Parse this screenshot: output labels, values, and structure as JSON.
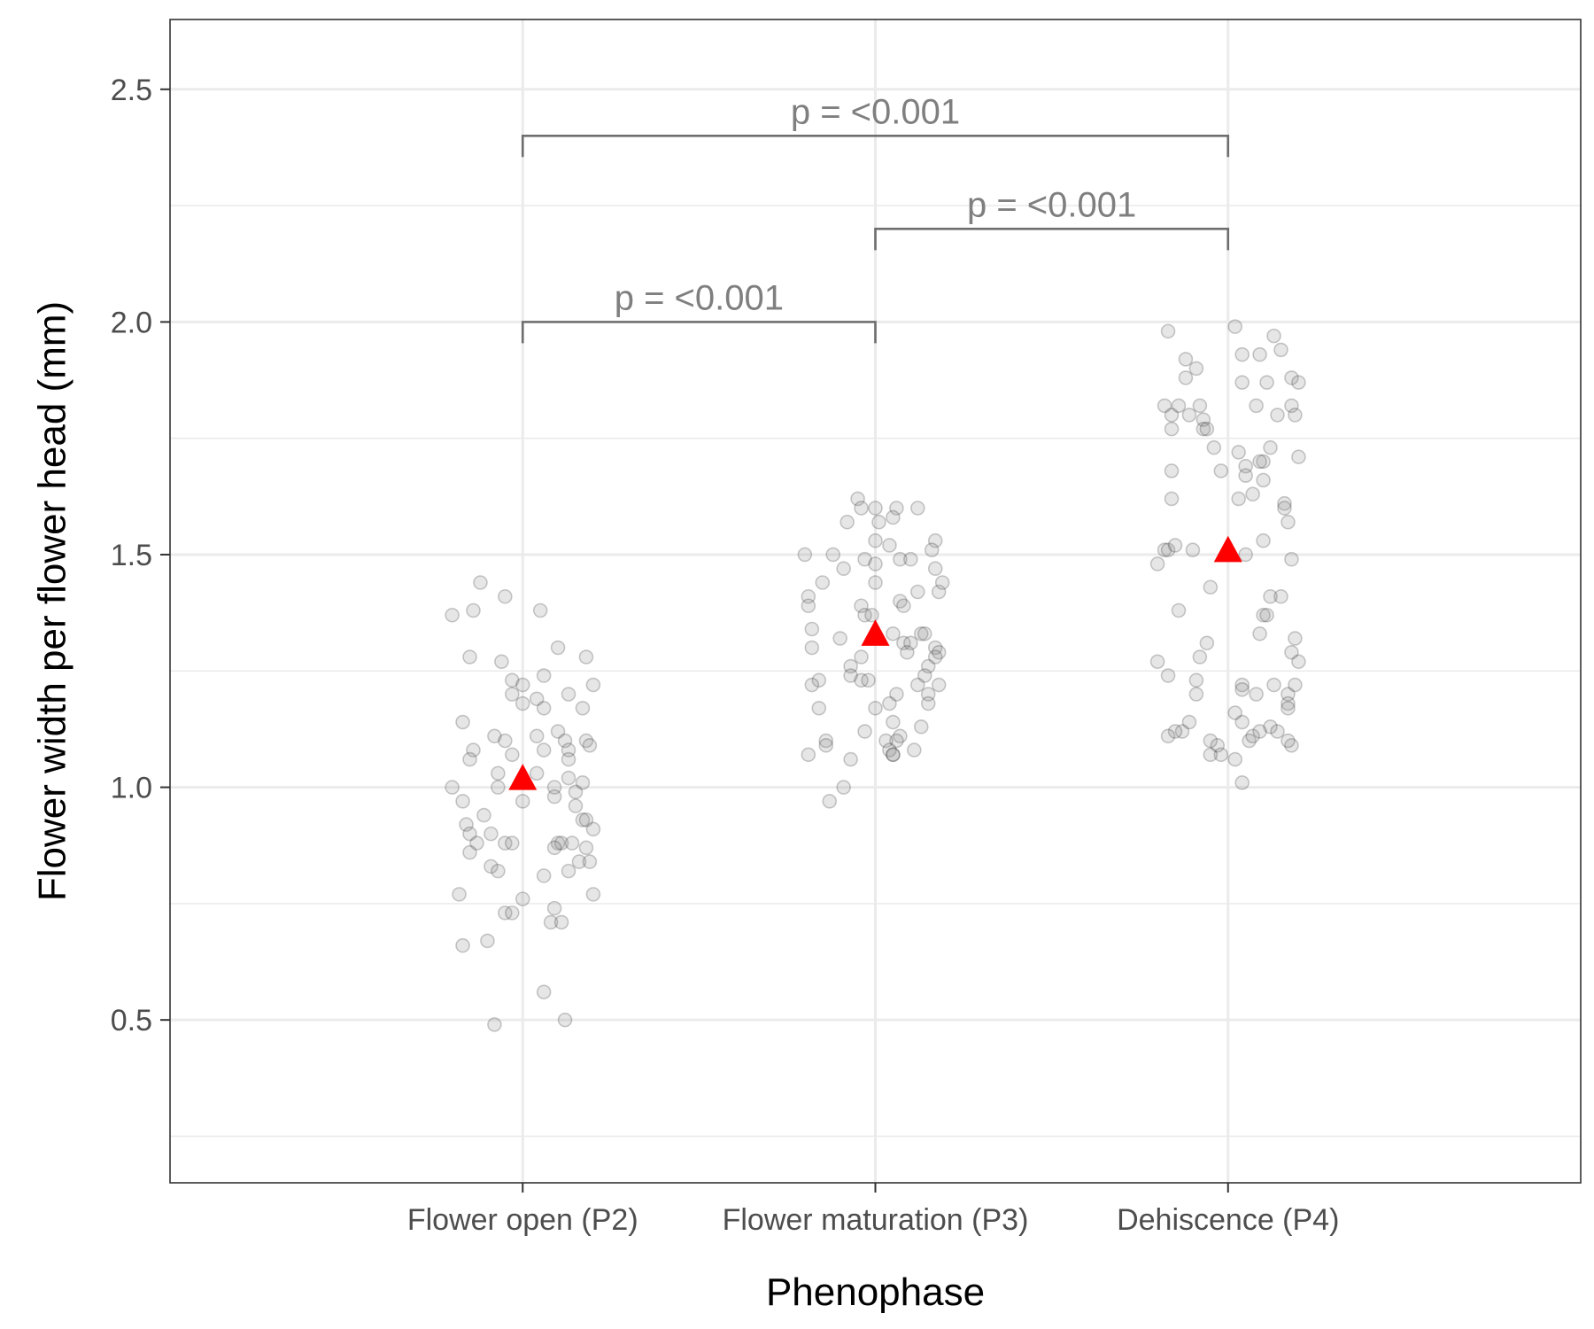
{
  "chart_data": {
    "type": "scatter",
    "xlabel": "Phenophase",
    "ylabel": "Flower width per flower head (mm)",
    "categories": [
      "Flower open (P2)",
      "Flower maturation (P3)",
      "Dehiscence (P4)"
    ],
    "ylim": [
      0.15,
      2.65
    ],
    "y_ticks": [
      "0.5",
      "1.0",
      "1.5",
      "2.0",
      "2.5"
    ],
    "grid": "on",
    "point_color": "#808080",
    "mean_marker_color": "#ff0000",
    "means": [
      1.02,
      1.33,
      1.51
    ],
    "series": [
      {
        "category": "Flower open (P2)",
        "points": [
          [
            -0.2,
            1.37
          ],
          [
            -0.12,
            1.44
          ],
          [
            -0.05,
            1.41
          ],
          [
            0.05,
            1.38
          ],
          [
            -0.14,
            1.38
          ],
          [
            -0.15,
            1.28
          ],
          [
            -0.06,
            1.27
          ],
          [
            0.1,
            1.3
          ],
          [
            0.18,
            1.28
          ],
          [
            -0.03,
            1.23
          ],
          [
            0.0,
            1.22
          ],
          [
            0.06,
            1.24
          ],
          [
            0.2,
            1.22
          ],
          [
            -0.03,
            1.2
          ],
          [
            0.04,
            1.19
          ],
          [
            0.13,
            1.2
          ],
          [
            0.0,
            1.18
          ],
          [
            0.06,
            1.17
          ],
          [
            0.17,
            1.17
          ],
          [
            -0.17,
            1.14
          ],
          [
            -0.08,
            1.11
          ],
          [
            -0.05,
            1.1
          ],
          [
            0.04,
            1.11
          ],
          [
            0.1,
            1.12
          ],
          [
            0.12,
            1.1
          ],
          [
            0.18,
            1.1
          ],
          [
            -0.14,
            1.08
          ],
          [
            -0.03,
            1.07
          ],
          [
            0.06,
            1.08
          ],
          [
            0.13,
            1.08
          ],
          [
            0.19,
            1.09
          ],
          [
            -0.15,
            1.06
          ],
          [
            0.13,
            1.06
          ],
          [
            0.04,
            1.03
          ],
          [
            -0.07,
            1.03
          ],
          [
            0.13,
            1.02
          ],
          [
            0.17,
            1.01
          ],
          [
            -0.2,
            1.0
          ],
          [
            -0.07,
            1.0
          ],
          [
            0.09,
            1.0
          ],
          [
            0.15,
            0.99
          ],
          [
            -0.17,
            0.97
          ],
          [
            0.0,
            0.97
          ],
          [
            0.09,
            0.98
          ],
          [
            0.15,
            0.96
          ],
          [
            -0.11,
            0.94
          ],
          [
            -0.16,
            0.92
          ],
          [
            0.17,
            0.93
          ],
          [
            0.18,
            0.93
          ],
          [
            -0.15,
            0.9
          ],
          [
            -0.09,
            0.9
          ],
          [
            0.2,
            0.91
          ],
          [
            -0.13,
            0.88
          ],
          [
            -0.05,
            0.88
          ],
          [
            -0.03,
            0.88
          ],
          [
            0.1,
            0.88
          ],
          [
            0.11,
            0.88
          ],
          [
            0.14,
            0.88
          ],
          [
            -0.15,
            0.86
          ],
          [
            0.09,
            0.87
          ],
          [
            0.18,
            0.87
          ],
          [
            -0.09,
            0.83
          ],
          [
            -0.07,
            0.82
          ],
          [
            0.06,
            0.81
          ],
          [
            0.13,
            0.82
          ],
          [
            0.16,
            0.84
          ],
          [
            0.19,
            0.84
          ],
          [
            -0.18,
            0.77
          ],
          [
            -0.05,
            0.73
          ],
          [
            -0.03,
            0.73
          ],
          [
            0.0,
            0.76
          ],
          [
            0.09,
            0.74
          ],
          [
            0.08,
            0.71
          ],
          [
            0.11,
            0.71
          ],
          [
            0.2,
            0.77
          ],
          [
            -0.17,
            0.66
          ],
          [
            -0.1,
            0.67
          ],
          [
            0.06,
            0.56
          ],
          [
            -0.08,
            0.49
          ],
          [
            0.12,
            0.5
          ]
        ]
      },
      {
        "category": "Flower maturation (P3)",
        "points": [
          [
            -0.05,
            1.62
          ],
          [
            -0.04,
            1.6
          ],
          [
            0.0,
            1.6
          ],
          [
            0.06,
            1.6
          ],
          [
            0.12,
            1.6
          ],
          [
            -0.08,
            1.57
          ],
          [
            0.01,
            1.57
          ],
          [
            0.05,
            1.58
          ],
          [
            0.17,
            1.53
          ],
          [
            0.0,
            1.53
          ],
          [
            0.04,
            1.52
          ],
          [
            -0.2,
            1.5
          ],
          [
            -0.12,
            1.5
          ],
          [
            -0.03,
            1.49
          ],
          [
            0.0,
            1.48
          ],
          [
            0.07,
            1.49
          ],
          [
            0.1,
            1.49
          ],
          [
            0.16,
            1.51
          ],
          [
            -0.09,
            1.47
          ],
          [
            0.17,
            1.47
          ],
          [
            -0.15,
            1.44
          ],
          [
            0.0,
            1.44
          ],
          [
            0.12,
            1.42
          ],
          [
            0.18,
            1.42
          ],
          [
            0.19,
            1.44
          ],
          [
            -0.19,
            1.41
          ],
          [
            -0.19,
            1.39
          ],
          [
            -0.04,
            1.39
          ],
          [
            0.07,
            1.4
          ],
          [
            0.08,
            1.39
          ],
          [
            -0.03,
            1.37
          ],
          [
            -0.01,
            1.37
          ],
          [
            -0.18,
            1.34
          ],
          [
            -0.18,
            1.3
          ],
          [
            -0.1,
            1.32
          ],
          [
            0.05,
            1.33
          ],
          [
            0.08,
            1.31
          ],
          [
            0.1,
            1.31
          ],
          [
            0.13,
            1.33
          ],
          [
            0.14,
            1.33
          ],
          [
            0.17,
            1.3
          ],
          [
            0.18,
            1.29
          ],
          [
            -0.07,
            1.26
          ],
          [
            -0.04,
            1.28
          ],
          [
            0.09,
            1.29
          ],
          [
            0.15,
            1.26
          ],
          [
            0.17,
            1.28
          ],
          [
            -0.07,
            1.24
          ],
          [
            -0.04,
            1.23
          ],
          [
            -0.02,
            1.23
          ],
          [
            0.14,
            1.24
          ],
          [
            -0.16,
            1.23
          ],
          [
            -0.18,
            1.22
          ],
          [
            0.12,
            1.22
          ],
          [
            0.18,
            1.22
          ],
          [
            0.06,
            1.2
          ],
          [
            0.04,
            1.18
          ],
          [
            0.15,
            1.2
          ],
          [
            0.15,
            1.18
          ],
          [
            -0.16,
            1.17
          ],
          [
            0.0,
            1.17
          ],
          [
            0.05,
            1.14
          ],
          [
            0.07,
            1.11
          ],
          [
            -0.03,
            1.12
          ],
          [
            0.06,
            1.1
          ],
          [
            0.13,
            1.13
          ],
          [
            -0.14,
            1.1
          ],
          [
            -0.14,
            1.09
          ],
          [
            0.03,
            1.1
          ],
          [
            0.04,
            1.08
          ],
          [
            0.05,
            1.07
          ],
          [
            0.11,
            1.08
          ],
          [
            -0.19,
            1.07
          ],
          [
            -0.07,
            1.06
          ],
          [
            0.05,
            1.07
          ],
          [
            -0.09,
            1.0
          ],
          [
            -0.13,
            0.97
          ]
        ]
      },
      {
        "category": "Dehiscence (P4)",
        "points": [
          [
            -0.17,
            1.98
          ],
          [
            0.02,
            1.99
          ],
          [
            0.13,
            1.97
          ],
          [
            -0.12,
            1.92
          ],
          [
            0.09,
            1.93
          ],
          [
            0.15,
            1.94
          ],
          [
            0.04,
            1.93
          ],
          [
            -0.09,
            1.9
          ],
          [
            -0.12,
            1.88
          ],
          [
            0.04,
            1.87
          ],
          [
            0.11,
            1.87
          ],
          [
            0.18,
            1.88
          ],
          [
            0.2,
            1.87
          ],
          [
            -0.18,
            1.82
          ],
          [
            -0.16,
            1.8
          ],
          [
            -0.14,
            1.82
          ],
          [
            -0.11,
            1.8
          ],
          [
            -0.08,
            1.82
          ],
          [
            -0.07,
            1.79
          ],
          [
            0.08,
            1.82
          ],
          [
            0.18,
            1.82
          ],
          [
            0.19,
            1.8
          ],
          [
            0.14,
            1.8
          ],
          [
            -0.16,
            1.77
          ],
          [
            -0.07,
            1.77
          ],
          [
            -0.06,
            1.77
          ],
          [
            -0.04,
            1.73
          ],
          [
            0.03,
            1.72
          ],
          [
            0.12,
            1.73
          ],
          [
            0.1,
            1.7
          ],
          [
            0.09,
            1.7
          ],
          [
            0.05,
            1.69
          ],
          [
            -0.02,
            1.68
          ],
          [
            0.2,
            1.71
          ],
          [
            -0.16,
            1.68
          ],
          [
            0.05,
            1.67
          ],
          [
            0.1,
            1.66
          ],
          [
            -0.16,
            1.62
          ],
          [
            0.03,
            1.62
          ],
          [
            0.07,
            1.63
          ],
          [
            0.16,
            1.61
          ],
          [
            0.16,
            1.6
          ],
          [
            0.17,
            1.57
          ],
          [
            0.1,
            1.53
          ],
          [
            -0.18,
            1.51
          ],
          [
            -0.17,
            1.51
          ],
          [
            -0.15,
            1.52
          ],
          [
            -0.1,
            1.51
          ],
          [
            0.05,
            1.5
          ],
          [
            0.18,
            1.49
          ],
          [
            -0.2,
            1.48
          ],
          [
            -0.14,
            1.38
          ],
          [
            -0.05,
            1.43
          ],
          [
            0.12,
            1.41
          ],
          [
            0.15,
            1.41
          ],
          [
            0.1,
            1.37
          ],
          [
            0.11,
            1.37
          ],
          [
            0.09,
            1.33
          ],
          [
            0.19,
            1.32
          ],
          [
            -0.06,
            1.31
          ],
          [
            -0.08,
            1.28
          ],
          [
            -0.2,
            1.27
          ],
          [
            -0.17,
            1.24
          ],
          [
            0.18,
            1.29
          ],
          [
            0.2,
            1.27
          ],
          [
            -0.09,
            1.23
          ],
          [
            -0.09,
            1.2
          ],
          [
            0.04,
            1.22
          ],
          [
            0.04,
            1.21
          ],
          [
            0.08,
            1.2
          ],
          [
            0.13,
            1.22
          ],
          [
            0.17,
            1.2
          ],
          [
            0.19,
            1.22
          ],
          [
            0.17,
            1.18
          ],
          [
            0.17,
            1.17
          ],
          [
            -0.11,
            1.14
          ],
          [
            -0.13,
            1.12
          ],
          [
            -0.15,
            1.12
          ],
          [
            -0.17,
            1.11
          ],
          [
            0.06,
            1.1
          ],
          [
            0.02,
            1.16
          ],
          [
            0.04,
            1.14
          ],
          [
            0.07,
            1.11
          ],
          [
            0.09,
            1.12
          ],
          [
            0.12,
            1.13
          ],
          [
            -0.05,
            1.1
          ],
          [
            -0.03,
            1.09
          ],
          [
            -0.02,
            1.07
          ],
          [
            -0.05,
            1.07
          ],
          [
            0.02,
            1.06
          ],
          [
            0.18,
            1.09
          ],
          [
            0.17,
            1.1
          ],
          [
            0.14,
            1.12
          ],
          [
            0.04,
            1.01
          ]
        ]
      }
    ],
    "comparisons": [
      {
        "from": 0,
        "to": 1,
        "y": 2.0,
        "label": "p =  <0.001"
      },
      {
        "from": 1,
        "to": 2,
        "y": 2.2,
        "label": "p =  <0.001"
      },
      {
        "from": 0,
        "to": 2,
        "y": 2.4,
        "label": "p =  <0.001"
      }
    ]
  }
}
